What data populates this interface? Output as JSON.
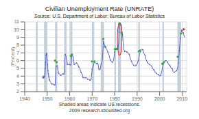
{
  "chart_data": {
    "type": "line",
    "title": "Civilian Unemployment Rate (UNRATE)",
    "subtitle": "Source: U.S. Department of Labor; Bureau of Labor Statistics",
    "ylabel": "(Percent)",
    "annotations": [
      "Shaded areas indicate US recessions.",
      "2009 research.stlouisfed.org"
    ],
    "xlim": [
      1940,
      2012
    ],
    "ylim": [
      2,
      11
    ],
    "xticks": [
      1940,
      1950,
      1960,
      1970,
      1980,
      1990,
      2000,
      2010
    ],
    "yticks": [
      2,
      3,
      4,
      5,
      6,
      7,
      8,
      9,
      10,
      11
    ],
    "grid": true,
    "recession_color": "#c4cfd8",
    "recession_bands": [
      [
        1945.0,
        1945.8
      ],
      [
        1948.6,
        1949.9
      ],
      [
        1953.5,
        1954.5
      ],
      [
        1957.6,
        1958.6
      ],
      [
        1960.2,
        1961.2
      ],
      [
        1969.9,
        1970.9
      ],
      [
        1973.8,
        1975.2
      ],
      [
        1980.0,
        1980.6
      ],
      [
        1981.5,
        1982.8
      ],
      [
        1990.5,
        1991.2
      ],
      [
        2001.2,
        2001.9
      ],
      [
        2007.9,
        2009.5
      ]
    ],
    "series": [
      {
        "type": "line",
        "color": "#5566cc",
        "marker": "circle",
        "x": [
          1948.0,
          1948.08,
          1948.17,
          1948.25,
          1948.33,
          1948.42,
          1948.5,
          1948.58,
          1948.67,
          1948.75,
          1948.83,
          1948.92,
          1949.0,
          1949.08,
          1949.17,
          1949.25,
          1949.33,
          1949.42,
          1949.5,
          1949.58,
          1949.67,
          1949.75,
          1949.83,
          1949.92,
          1950.0,
          1950.08,
          1950.17,
          1950.25,
          1950.33,
          1950.42,
          1950.5,
          1950.58,
          1950.67,
          1950.75,
          1950.83,
          1950.92,
          1951.0,
          1951.5,
          1952.0,
          1952.5,
          1953.0,
          1953.5,
          1954.0,
          1954.5,
          1955.0,
          1955.5,
          1956.0,
          1956.5,
          1957.0,
          1957.5,
          1958.0,
          1958.5,
          1959.0,
          1959.5,
          1960.0,
          1960.5,
          1961.0,
          1961.5,
          1962.0,
          1962.5,
          1963.0,
          1963.5,
          1964.0,
          1964.5,
          1965.0,
          1965.5,
          1966.0,
          1966.5,
          1967.0,
          1967.5,
          1968.0,
          1968.5,
          1969.0,
          1969.5,
          1970.0,
          1970.5,
          1971.0,
          1971.5,
          1972.0,
          1972.5,
          1973.0,
          1973.5,
          1974.0,
          1974.5,
          1975.0,
          1975.5,
          1976.0,
          1976.5,
          1977.0,
          1977.5,
          1978.0,
          1978.5,
          1979.0,
          1979.5,
          1980.0,
          1980.25,
          1980.5,
          1980.75,
          1981.0,
          1981.25,
          1981.5,
          1981.75,
          1982.0,
          1982.25,
          1982.5,
          1982.75,
          1982.92,
          1983.0,
          1983.5,
          1984.0,
          1984.5,
          1985.0,
          1985.5,
          1986.0,
          1986.5,
          1987.0,
          1987.5,
          1988.0,
          1988.5,
          1989.0,
          1989.5,
          1990.0,
          1990.5,
          1991.0,
          1991.5,
          1992.0,
          1992.5,
          1993.0,
          1993.5,
          1994.0,
          1994.5,
          1995.0,
          1995.5,
          1996.0,
          1996.5,
          1997.0,
          1997.5,
          1998.0,
          1998.5,
          1999.0,
          1999.5,
          2000.0,
          2000.5,
          2001.0,
          2001.5,
          2002.0,
          2002.5,
          2003.0,
          2003.5,
          2004.0,
          2004.5,
          2005.0,
          2005.5,
          2006.0,
          2006.5,
          2007.0,
          2007.5,
          2008.0,
          2008.25,
          2008.5,
          2008.75,
          2009.0,
          2009.25,
          2009.5,
          2009.75,
          2010.0,
          2010.5,
          2011.0
        ],
        "values": [
          3.8,
          3.9,
          4.0,
          3.9,
          3.8,
          3.7,
          3.8,
          3.9,
          3.9,
          4.0,
          4.0,
          4.0,
          4.3,
          4.7,
          5.0,
          5.3,
          5.8,
          6.2,
          6.7,
          6.9,
          6.9,
          7.0,
          6.8,
          6.2,
          6.1,
          5.8,
          5.5,
          5.0,
          4.7,
          4.4,
          4.3,
          4.2,
          4.0,
          3.9,
          3.8,
          3.6,
          3.5,
          3.2,
          3.0,
          3.0,
          2.9,
          2.8,
          5.3,
          5.4,
          4.4,
          4.2,
          4.1,
          4.2,
          4.3,
          4.2,
          6.8,
          6.5,
          5.5,
          5.5,
          5.5,
          5.4,
          6.7,
          6.6,
          5.5,
          5.6,
          5.7,
          5.6,
          5.2,
          5.0,
          4.5,
          4.3,
          3.8,
          3.8,
          3.8,
          3.8,
          3.6,
          3.6,
          3.5,
          3.5,
          4.9,
          5.3,
          5.9,
          5.7,
          5.6,
          5.7,
          4.9,
          4.8,
          5.6,
          6.0,
          8.5,
          8.0,
          7.7,
          7.4,
          7.1,
          6.7,
          6.1,
          5.9,
          5.8,
          6.0,
          7.1,
          7.5,
          7.5,
          7.5,
          7.6,
          7.5,
          7.5,
          8.2,
          9.7,
          10.4,
          10.8,
          10.7,
          10.6,
          10.4,
          9.3,
          7.5,
          7.2,
          7.2,
          7.1,
          7.0,
          6.8,
          6.2,
          5.9,
          5.5,
          5.4,
          5.3,
          5.4,
          5.6,
          6.0,
          6.8,
          7.2,
          7.5,
          7.4,
          6.9,
          6.7,
          6.1,
          5.8,
          5.6,
          5.5,
          5.4,
          5.3,
          4.9,
          4.8,
          4.5,
          4.4,
          4.2,
          4.2,
          4.0,
          4.1,
          4.7,
          5.5,
          5.8,
          6.0,
          6.0,
          5.8,
          5.5,
          5.4,
          5.1,
          5.0,
          4.6,
          4.5,
          4.6,
          4.7,
          5.0,
          5.7,
          6.2,
          7.3,
          8.2,
          8.9,
          9.5,
          9.9,
          9.7,
          9.6,
          9.0
        ]
      },
      {
        "type": "scatter",
        "color": "#33aa33",
        "marker": "circle",
        "x": [
          1953.5,
          1954.2,
          1960.5,
          1961.0,
          1969.9,
          1971.0,
          1975.0,
          1975.8,
          1980.1,
          1980.8,
          1982.0,
          1983.0,
          1990.7,
          1991.3,
          2001.2,
          2001.9,
          2008.0,
          2009.5
        ],
        "values": [
          6.0,
          5.8,
          6.6,
          6.8,
          5.9,
          5.9,
          8.8,
          7.8,
          7.5,
          7.5,
          10.7,
          9.6,
          7.2,
          7.3,
          5.6,
          5.8,
          6.5,
          9.5
        ]
      },
      {
        "type": "line",
        "color": "#cc2222",
        "x": [
          2009.75,
          2010.0,
          2010.3,
          2010.7
        ],
        "values": [
          9.9,
          9.8,
          9.9,
          10.05
        ]
      },
      {
        "type": "scatter",
        "color": "#cc2222",
        "marker": "circle",
        "x": [
          2010.7
        ],
        "values": [
          10.05
        ]
      }
    ],
    "ellipse": {
      "x": 1982.2,
      "y": 8.8,
      "width": 2.0,
      "height": 4.2,
      "color": "red"
    }
  }
}
